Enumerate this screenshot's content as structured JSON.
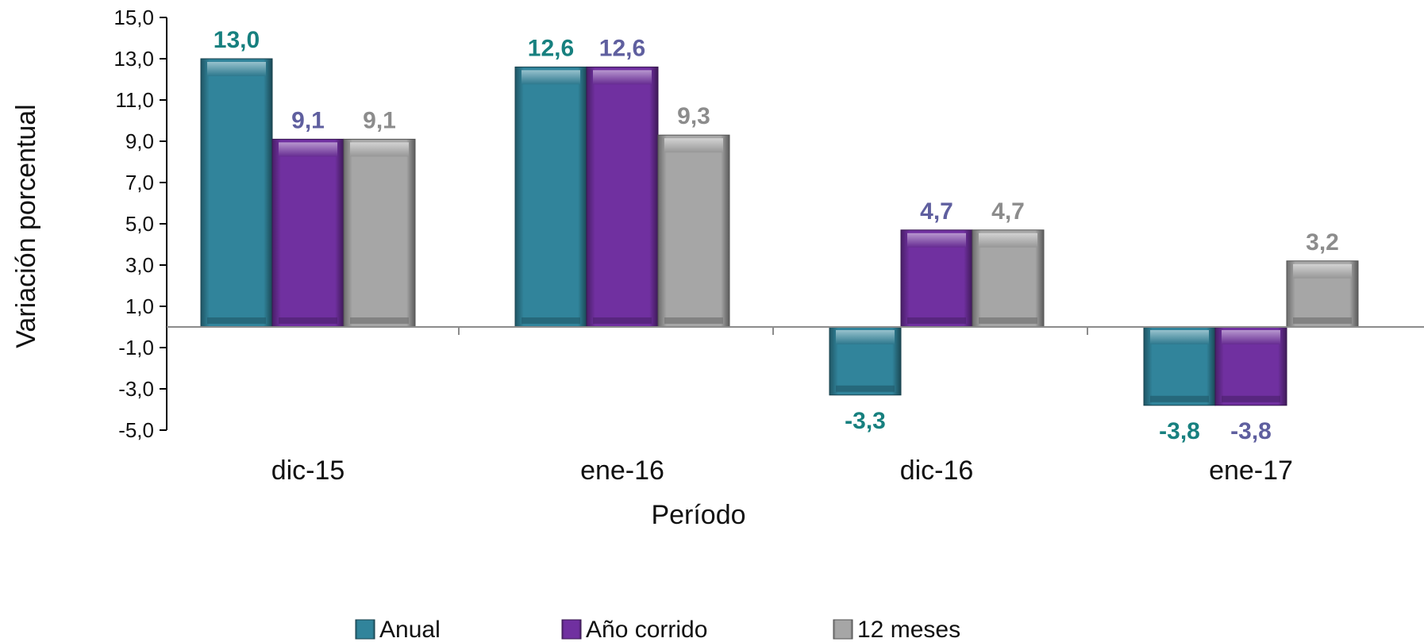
{
  "chart_data": {
    "type": "bar",
    "categories": [
      "dic-15",
      "ene-16",
      "dic-16",
      "ene-17"
    ],
    "series": [
      {
        "name": "Anual",
        "values": [
          13.0,
          12.6,
          -3.3,
          -3.8
        ],
        "labels": [
          "13,0",
          "12,6",
          "-3,3",
          "-3,8"
        ],
        "color": "#31849B",
        "label_color": "#17807F"
      },
      {
        "name": "Año corrido",
        "values": [
          9.1,
          12.6,
          4.7,
          -3.8
        ],
        "labels": [
          "9,1",
          "12,6",
          "4,7",
          "-3,8"
        ],
        "color": "#7030A0",
        "label_color": "#5F5F9F"
      },
      {
        "name": "12 meses",
        "values": [
          9.1,
          9.3,
          4.7,
          3.2
        ],
        "labels": [
          "9,1",
          "9,3",
          "4,7",
          "3,2"
        ],
        "color": "#A6A6A6",
        "label_color": "#8C8C8C"
      }
    ],
    "ylim": [
      -5,
      15
    ],
    "yticks": [
      -5,
      -3,
      -1,
      1,
      3,
      5,
      7,
      9,
      11,
      13,
      15
    ],
    "ytick_labels": [
      "-5,0",
      "-3,0",
      "-1,0",
      "1,0",
      "3,0",
      "5,0",
      "7,0",
      "9,0",
      "11,0",
      "13,0",
      "15,0"
    ],
    "xlabel": "Período",
    "ylabel": "Variación porcentual",
    "legend_position": "bottom",
    "grid": false
  }
}
